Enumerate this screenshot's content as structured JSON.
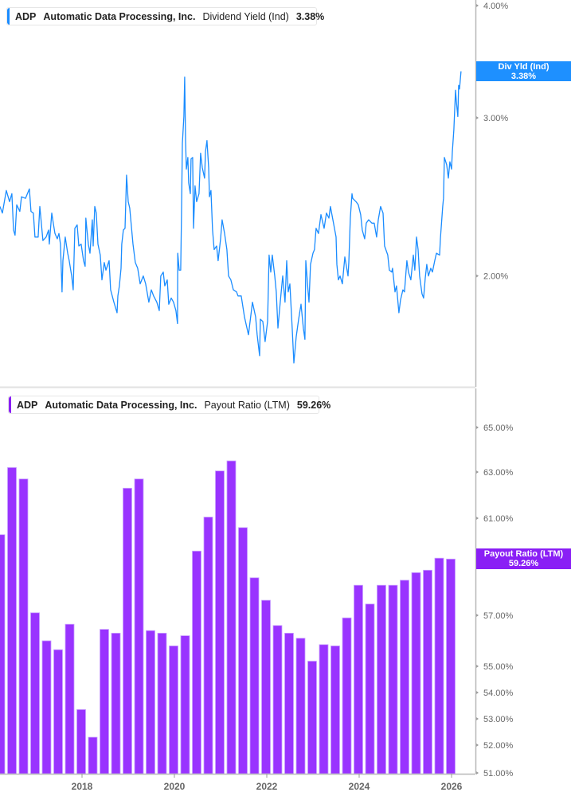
{
  "colors": {
    "yield_line": "#1a8cff",
    "payout_bar": "#9933ff",
    "payout_tag": "#8a1ff5",
    "yield_tag": "#1e90ff"
  },
  "legend_top": {
    "ticker": "ADP",
    "company": "Automatic Data Processing, Inc.",
    "metric": "Dividend Yield (Ind)",
    "value": "3.38%"
  },
  "legend_bottom": {
    "ticker": "ADP",
    "company": "Automatic Data Processing, Inc.",
    "metric": "Payout Ratio (LTM)",
    "value": "59.26%"
  },
  "tag_top": {
    "label": "Div Yld (Ind)",
    "value": "3.38%"
  },
  "tag_bottom": {
    "label": "Payout Ratio (LTM)",
    "value": "59.26%"
  },
  "chart_data": [
    {
      "type": "line",
      "series": [
        {
          "name": "Dividend Yield (Ind)",
          "color": "#1a8cff"
        }
      ],
      "y_scale": "log",
      "ylim": [
        1.5,
        4.0
      ],
      "y_ticks": [
        {
          "value": 4.0,
          "label": "4.00%"
        },
        {
          "value": 3.0,
          "label": "3.00%"
        },
        {
          "value": 2.0,
          "label": "2.00%"
        }
      ],
      "x_ticks": [
        "2018",
        "2020",
        "2022",
        "2024",
        "2026"
      ],
      "last_value": 3.38,
      "points": [
        [
          "2016-03-21",
          2.39
        ],
        [
          "2016-04-10",
          2.35
        ],
        [
          "2016-05-11",
          2.49
        ],
        [
          "2016-06-06",
          2.42
        ],
        [
          "2016-06-24",
          2.47
        ],
        [
          "2016-07-07",
          2.25
        ],
        [
          "2016-07-19",
          2.22
        ],
        [
          "2016-08-02",
          2.4
        ],
        [
          "2016-08-26",
          2.36
        ],
        [
          "2016-09-09",
          2.45
        ],
        [
          "2016-10-10",
          2.44
        ],
        [
          "2016-11-11",
          2.5
        ],
        [
          "2016-11-23",
          2.36
        ],
        [
          "2016-12-12",
          2.35
        ],
        [
          "2016-12-24",
          2.21
        ],
        [
          "2017-01-19",
          2.21
        ],
        [
          "2017-02-02",
          2.39
        ],
        [
          "2017-02-14",
          2.29
        ],
        [
          "2017-02-26",
          2.19
        ],
        [
          "2017-03-21",
          2.21
        ],
        [
          "2017-04-10",
          2.25
        ],
        [
          "2017-04-16",
          2.17
        ],
        [
          "2017-05-05",
          2.35
        ],
        [
          "2017-05-17",
          2.29
        ],
        [
          "2017-05-30",
          2.23
        ],
        [
          "2017-06-18",
          2.2
        ],
        [
          "2017-07-01",
          2.23
        ],
        [
          "2017-07-13",
          2.17
        ],
        [
          "2017-07-25",
          1.92
        ],
        [
          "2017-08-02",
          2.08
        ],
        [
          "2017-08-20",
          2.21
        ],
        [
          "2017-09-09",
          2.12
        ],
        [
          "2017-09-21",
          2.08
        ],
        [
          "2017-10-10",
          2.0
        ],
        [
          "2017-10-22",
          1.93
        ],
        [
          "2017-11-05",
          2.26
        ],
        [
          "2017-11-23",
          2.28
        ],
        [
          "2017-12-06",
          2.16
        ],
        [
          "2017-12-24",
          2.17
        ],
        [
          "2018-01-13",
          2.08
        ],
        [
          "2018-01-25",
          2.05
        ],
        [
          "2018-02-01",
          2.32
        ],
        [
          "2018-02-20",
          2.17
        ],
        [
          "2018-03-03",
          2.12
        ],
        [
          "2018-03-21",
          2.31
        ],
        [
          "2018-03-28",
          2.16
        ],
        [
          "2018-04-10",
          2.39
        ],
        [
          "2018-04-22",
          2.35
        ],
        [
          "2018-05-05",
          2.17
        ],
        [
          "2018-05-23",
          2.11
        ],
        [
          "2018-06-06",
          1.98
        ],
        [
          "2018-06-24",
          2.07
        ],
        [
          "2018-07-07",
          2.03
        ],
        [
          "2018-08-02",
          2.08
        ],
        [
          "2018-08-14",
          1.93
        ],
        [
          "2018-09-09",
          1.87
        ],
        [
          "2018-10-04",
          1.82
        ],
        [
          "2018-10-10",
          1.9
        ],
        [
          "2018-10-22",
          1.95
        ],
        [
          "2018-11-05",
          2.04
        ],
        [
          "2018-11-11",
          2.17
        ],
        [
          "2018-11-23",
          2.25
        ],
        [
          "2018-12-06",
          2.26
        ],
        [
          "2018-12-18",
          2.59
        ],
        [
          "2019-01-01",
          2.42
        ],
        [
          "2019-01-13",
          2.38
        ],
        [
          "2019-02-08",
          2.17
        ],
        [
          "2019-02-26",
          2.07
        ],
        [
          "2019-03-15",
          2.04
        ],
        [
          "2019-04-04",
          1.96
        ],
        [
          "2019-04-28",
          2.0
        ],
        [
          "2019-05-17",
          1.96
        ],
        [
          "2019-06-12",
          1.87
        ],
        [
          "2019-07-01",
          1.93
        ],
        [
          "2019-07-19",
          1.9
        ],
        [
          "2019-08-14",
          1.87
        ],
        [
          "2019-09-03",
          1.83
        ],
        [
          "2019-09-15",
          2.0
        ],
        [
          "2019-10-04",
          2.02
        ],
        [
          "2019-10-16",
          1.95
        ],
        [
          "2019-11-05",
          1.98
        ],
        [
          "2019-11-17",
          1.86
        ],
        [
          "2019-12-06",
          1.89
        ],
        [
          "2019-12-24",
          1.87
        ],
        [
          "2020-01-13",
          1.83
        ],
        [
          "2020-01-25",
          1.77
        ],
        [
          "2020-01-27",
          2.12
        ],
        [
          "2020-02-08",
          2.03
        ],
        [
          "2020-02-20",
          2.03
        ],
        [
          "2020-02-26",
          2.34
        ],
        [
          "2020-03-03",
          2.81
        ],
        [
          "2020-03-15",
          3.01
        ],
        [
          "2020-03-21",
          3.33
        ],
        [
          "2020-03-28",
          2.83
        ],
        [
          "2020-04-04",
          2.63
        ],
        [
          "2020-04-16",
          2.71
        ],
        [
          "2020-04-22",
          2.54
        ],
        [
          "2020-05-05",
          2.47
        ],
        [
          "2020-05-11",
          2.7
        ],
        [
          "2020-05-23",
          2.71
        ],
        [
          "2020-05-30",
          2.26
        ],
        [
          "2020-06-12",
          2.52
        ],
        [
          "2020-06-24",
          2.42
        ],
        [
          "2020-07-13",
          2.47
        ],
        [
          "2020-07-25",
          2.74
        ],
        [
          "2020-08-08",
          2.64
        ],
        [
          "2020-08-26",
          2.57
        ],
        [
          "2020-09-03",
          2.75
        ],
        [
          "2020-09-15",
          2.83
        ],
        [
          "2020-09-28",
          2.64
        ],
        [
          "2020-10-04",
          2.45
        ],
        [
          "2020-10-16",
          2.49
        ],
        [
          "2020-10-28",
          2.25
        ],
        [
          "2020-11-11",
          2.14
        ],
        [
          "2020-11-30",
          2.16
        ],
        [
          "2020-12-12",
          2.08
        ],
        [
          "2021-01-01",
          2.2
        ],
        [
          "2021-01-13",
          2.31
        ],
        [
          "2021-02-02",
          2.23
        ],
        [
          "2021-02-20",
          2.14
        ],
        [
          "2021-03-03",
          2.0
        ],
        [
          "2021-03-21",
          1.98
        ],
        [
          "2021-04-10",
          1.93
        ],
        [
          "2021-05-05",
          1.92
        ],
        [
          "2021-05-17",
          1.9
        ],
        [
          "2021-06-12",
          1.9
        ],
        [
          "2021-07-07",
          1.8
        ],
        [
          "2021-08-08",
          1.72
        ],
        [
          "2021-09-09",
          1.87
        ],
        [
          "2021-10-04",
          1.8
        ],
        [
          "2021-10-16",
          1.72
        ],
        [
          "2021-11-05",
          1.63
        ],
        [
          "2021-11-11",
          1.79
        ],
        [
          "2021-11-30",
          1.78
        ],
        [
          "2021-12-18",
          1.69
        ],
        [
          "2022-01-07",
          1.78
        ],
        [
          "2022-01-19",
          2.11
        ],
        [
          "2022-02-02",
          2.02
        ],
        [
          "2022-02-14",
          2.11
        ],
        [
          "2022-03-03",
          2.0
        ],
        [
          "2022-03-15",
          1.92
        ],
        [
          "2022-03-28",
          1.75
        ],
        [
          "2022-04-16",
          1.87
        ],
        [
          "2022-05-05",
          2.0
        ],
        [
          "2022-05-23",
          1.87
        ],
        [
          "2022-06-06",
          2.08
        ],
        [
          "2022-06-18",
          1.92
        ],
        [
          "2022-07-01",
          1.96
        ],
        [
          "2022-07-19",
          1.75
        ],
        [
          "2022-08-02",
          1.6
        ],
        [
          "2022-08-20",
          1.71
        ],
        [
          "2022-09-09",
          1.79
        ],
        [
          "2022-09-28",
          1.86
        ],
        [
          "2022-10-16",
          1.75
        ],
        [
          "2022-10-28",
          1.7
        ],
        [
          "2022-11-05",
          2.08
        ],
        [
          "2022-11-23",
          1.92
        ],
        [
          "2022-11-30",
          1.87
        ],
        [
          "2022-12-12",
          2.06
        ],
        [
          "2023-01-01",
          2.12
        ],
        [
          "2023-01-13",
          2.14
        ],
        [
          "2023-01-25",
          2.26
        ],
        [
          "2023-02-14",
          2.23
        ],
        [
          "2023-03-03",
          2.34
        ],
        [
          "2023-03-28",
          2.26
        ],
        [
          "2023-04-16",
          2.35
        ],
        [
          "2023-05-05",
          2.32
        ],
        [
          "2023-05-17",
          2.39
        ],
        [
          "2023-06-06",
          2.31
        ],
        [
          "2023-07-01",
          2.21
        ],
        [
          "2023-07-07",
          2.06
        ],
        [
          "2023-07-19",
          1.98
        ],
        [
          "2023-08-02",
          2.0
        ],
        [
          "2023-08-20",
          1.96
        ],
        [
          "2023-09-09",
          2.1
        ],
        [
          "2023-10-04",
          2.0
        ],
        [
          "2023-10-10",
          2.07
        ],
        [
          "2023-10-22",
          2.32
        ],
        [
          "2023-11-05",
          2.47
        ],
        [
          "2023-11-11",
          2.44
        ],
        [
          "2023-12-06",
          2.42
        ],
        [
          "2023-12-24",
          2.4
        ],
        [
          "2024-01-13",
          2.34
        ],
        [
          "2024-01-25",
          2.25
        ],
        [
          "2024-02-14",
          2.2
        ],
        [
          "2024-02-26",
          2.29
        ],
        [
          "2024-03-15",
          2.31
        ],
        [
          "2024-04-10",
          2.29
        ],
        [
          "2024-04-28",
          2.29
        ],
        [
          "2024-05-17",
          2.21
        ],
        [
          "2024-05-30",
          2.31
        ],
        [
          "2024-06-18",
          2.39
        ],
        [
          "2024-07-07",
          2.35
        ],
        [
          "2024-07-19",
          2.16
        ],
        [
          "2024-08-14",
          2.11
        ],
        [
          "2024-08-26",
          2.03
        ],
        [
          "2024-09-15",
          2.02
        ],
        [
          "2024-09-21",
          2.04
        ],
        [
          "2024-10-10",
          1.92
        ],
        [
          "2024-10-22",
          1.95
        ],
        [
          "2024-11-11",
          1.82
        ],
        [
          "2024-11-23",
          1.88
        ],
        [
          "2024-12-12",
          1.93
        ],
        [
          "2024-12-24",
          1.92
        ],
        [
          "2025-01-13",
          2.08
        ],
        [
          "2025-01-25",
          2.02
        ],
        [
          "2025-02-14",
          1.98
        ],
        [
          "2025-03-03",
          2.11
        ],
        [
          "2025-03-15",
          2.03
        ],
        [
          "2025-03-28",
          2.21
        ],
        [
          "2025-04-10",
          2.14
        ],
        [
          "2025-04-22",
          2.0
        ],
        [
          "2025-05-11",
          1.91
        ],
        [
          "2025-05-23",
          1.89
        ],
        [
          "2025-06-06",
          1.99
        ],
        [
          "2025-06-18",
          2.06
        ],
        [
          "2025-07-01",
          2.0
        ],
        [
          "2025-07-19",
          2.04
        ],
        [
          "2025-08-02",
          2.02
        ],
        [
          "2025-08-20",
          2.08
        ],
        [
          "2025-09-03",
          2.12
        ],
        [
          "2025-09-28",
          2.11
        ],
        [
          "2025-10-04",
          2.2
        ],
        [
          "2025-10-22",
          2.39
        ],
        [
          "2025-10-28",
          2.44
        ],
        [
          "2025-11-05",
          2.71
        ],
        [
          "2025-11-23",
          2.66
        ],
        [
          "2025-12-06",
          2.57
        ],
        [
          "2025-12-18",
          2.68
        ],
        [
          "2026-01-01",
          2.63
        ],
        [
          "2026-01-07",
          2.75
        ],
        [
          "2026-01-19",
          2.91
        ],
        [
          "2026-02-02",
          3.22
        ],
        [
          "2026-02-08",
          3.13
        ],
        [
          "2026-02-20",
          3.01
        ],
        [
          "2026-02-26",
          3.26
        ],
        [
          "2026-03-03",
          3.23
        ],
        [
          "2026-03-15",
          3.38
        ]
      ]
    },
    {
      "type": "bar",
      "series": [
        {
          "name": "Payout Ratio (LTM)",
          "color": "#9933ff"
        }
      ],
      "ylim": [
        51.0,
        66.0
      ],
      "y_ticks": [
        {
          "value": 65,
          "label": "65.00%"
        },
        {
          "value": 63,
          "label": "63.00%"
        },
        {
          "value": 61,
          "label": "61.00%"
        },
        {
          "value": 59,
          "label": "59.00%"
        },
        {
          "value": 57,
          "label": "57.00%"
        },
        {
          "value": 55,
          "label": "55.00%"
        },
        {
          "value": 54,
          "label": "54.00%"
        },
        {
          "value": 53,
          "label": "53.00%"
        },
        {
          "value": 52,
          "label": "52.00%"
        },
        {
          "value": 51,
          "label": "51.00%"
        }
      ],
      "x_ticks": [
        "2018",
        "2020",
        "2022",
        "2024",
        "2026"
      ],
      "categories": [
        "2016-03",
        "2016-06",
        "2016-09",
        "2016-12",
        "2017-03",
        "2017-06",
        "2017-09",
        "2017-12",
        "2018-03",
        "2018-06",
        "2018-09",
        "2018-12",
        "2019-03",
        "2019-06",
        "2019-09",
        "2019-12",
        "2020-03",
        "2020-06",
        "2020-09",
        "2020-12",
        "2021-03",
        "2021-06",
        "2021-09",
        "2021-12",
        "2022-03",
        "2022-06",
        "2022-09",
        "2022-12",
        "2023-03",
        "2023-06",
        "2023-09",
        "2023-12",
        "2024-03",
        "2024-06",
        "2024-09",
        "2024-12",
        "2025-03",
        "2025-06",
        "2025-09",
        "2025-12"
      ],
      "values": [
        60.3,
        63.2,
        62.7,
        57.1,
        56.0,
        55.65,
        56.65,
        53.35,
        52.3,
        56.45,
        56.3,
        62.3,
        62.7,
        56.4,
        56.3,
        55.8,
        56.2,
        59.6,
        61.05,
        63.05,
        63.5,
        60.6,
        58.5,
        57.6,
        56.6,
        56.3,
        56.1,
        55.2,
        55.85,
        55.8,
        56.9,
        58.2,
        57.45,
        58.2,
        58.2,
        58.4,
        58.7,
        58.8,
        59.3,
        59.26
      ]
    }
  ]
}
